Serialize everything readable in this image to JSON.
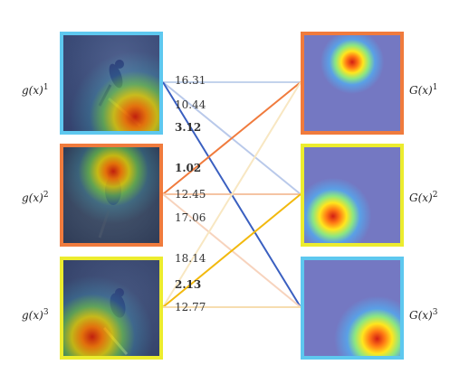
{
  "left_labels": [
    {
      "base": "g(x)",
      "sup": "1"
    },
    {
      "base": "g(x)",
      "sup": "2"
    },
    {
      "base": "g(x)",
      "sup": "3"
    }
  ],
  "right_labels": [
    {
      "base": "G(x)",
      "sup": "1"
    },
    {
      "base": "G(x)",
      "sup": "2"
    },
    {
      "base": "G(x)",
      "sup": "3"
    }
  ],
  "scores": [
    {
      "text": "16.31",
      "bold": false
    },
    {
      "text": "10.44",
      "bold": false
    },
    {
      "text": "3.12",
      "bold": true
    },
    {
      "text": "1.02",
      "bold": true
    },
    {
      "text": "12.45",
      "bold": false
    },
    {
      "text": "17.06",
      "bold": false
    },
    {
      "text": "18.14",
      "bold": false
    },
    {
      "text": "2.13",
      "bold": true
    },
    {
      "text": "12.77",
      "bold": false
    }
  ],
  "colors": {
    "cyan": "#5ec8ef",
    "orange": "#f07b3d",
    "yellow": "#ecec2e",
    "blue_line": "#3a5fc0",
    "gold_line": "#f2b90e"
  }
}
